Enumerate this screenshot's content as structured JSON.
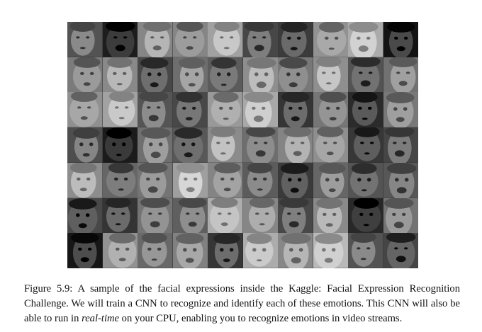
{
  "figure": {
    "alt": "Grid of 70 grayscale facial expression photographs",
    "rows": 7,
    "cols": 10,
    "tones": [
      [
        "#8a8a8a",
        "#3c3c3c",
        "#b5b5b5",
        "#9c9c9c",
        "#c8c8c8",
        "#7e7e7e",
        "#6a6a6a",
        "#a9a9a9",
        "#d2d2d2",
        "#4a4a4a"
      ],
      [
        "#9a9a9a",
        "#b8b8b8",
        "#6e6e6e",
        "#a5a5a5",
        "#7a7a7a",
        "#bdbdbd",
        "#8f8f8f",
        "#c6c6c6",
        "#727272",
        "#a0a0a0"
      ],
      [
        "#a7a7a7",
        "#c9c9c9",
        "#8c8c8c",
        "#777777",
        "#b0b0b0",
        "#cfcfcf",
        "#6c6c6c",
        "#959595",
        "#5a5a5a",
        "#9f9f9f"
      ],
      [
        "#858585",
        "#3a3a3a",
        "#9e9e9e",
        "#6f6f6f",
        "#c2c2c2",
        "#8d8d8d",
        "#b3b3b3",
        "#a6a6a6",
        "#5e5e5e",
        "#7c7c7c"
      ],
      [
        "#bcbcbc",
        "#7d7d7d",
        "#9b9b9b",
        "#d6d6d6",
        "#a3a3a3",
        "#8b8b8b",
        "#616161",
        "#9d9d9d",
        "#737373",
        "#868686"
      ],
      [
        "#5f5f5f",
        "#6b6b6b",
        "#939393",
        "#8e8e8e",
        "#c4c4c4",
        "#adadad",
        "#7f7f7f",
        "#b9b9b9",
        "#3f3f3f",
        "#9a9a9a"
      ],
      [
        "#4d4d4d",
        "#b1b1b1",
        "#979797",
        "#a8a8a8",
        "#6d6d6d",
        "#cbcbcb",
        "#b6b6b6",
        "#d0d0d0",
        "#8a8a8a",
        "#646464"
      ]
    ]
  },
  "caption": {
    "prefix": "Figure 5.9: A sample of the facial expressions inside the Kaggle: Facial Expression Recognition Challenge. We will train a CNN to recognize and identify each of these emotions. This CNN will also be able to run in ",
    "emphasis": "real-time",
    "suffix": " on your CPU, enabling you to recognize emotions in video streams."
  }
}
